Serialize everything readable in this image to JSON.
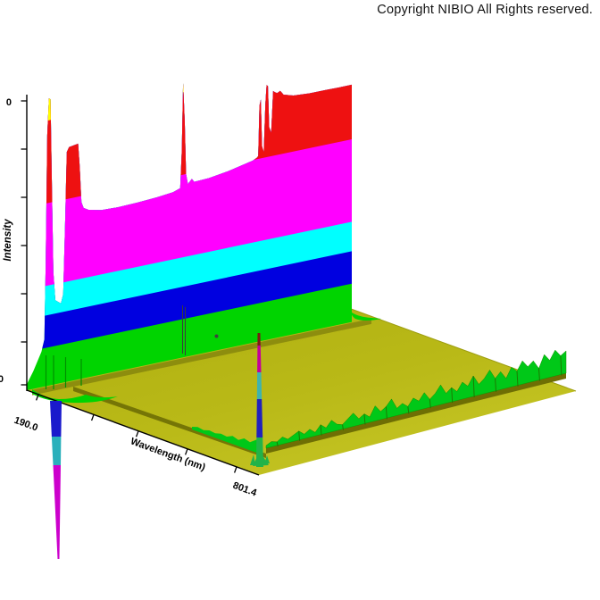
{
  "header": {
    "copyright": "Copyright NIBIO All Rights reserved."
  },
  "chart_data": {
    "type": "surface3d_waterfall",
    "description": "3D photodiode-array chromatogram: intensity surface over wavelength and retention, colored by height contour bands; saturated wall at low wavelength, noisy ridge at long-wavelength edge, negative solvent dip below baseline",
    "axes": {
      "wavelength": {
        "label": "Wavelength (nm)",
        "min": 190.0,
        "max": 801.4,
        "min_tick_label": "190.0",
        "max_tick_label": "801.4"
      },
      "intensity": {
        "label": "Intensity",
        "top_tick_label": "0",
        "bottom_tick_label": "0"
      },
      "depth": {
        "label": ""
      }
    },
    "palette": {
      "yellow": "#ffff00",
      "red": "#ee1111",
      "magenta": "#ff00ff",
      "cyan": "#00ffff",
      "blue": "#0000e0",
      "green": "#00d400",
      "ridge_green": "#00c818",
      "ridge_green_dark": "#1d7a00",
      "floor": "#b8b816",
      "floor_light": "#c6c626",
      "floor_dark": "#83830c",
      "groove": "#6e6e04",
      "axis": "#000000",
      "dip_blue": "#1a1acc",
      "dip_cyan": "#2ab0bb",
      "dip_magenta": "#cc00cc",
      "spike_green": "#22b349",
      "spike_teal": "#3fb3ae",
      "spike_blue": "#2222bb",
      "spike_magenta": "#c4009a",
      "spike_darkred": "#7a1e14"
    },
    "contour_thresholds": [
      [
        "green",
        0
      ],
      [
        "blue",
        0.13
      ],
      [
        "cyan",
        0.24
      ],
      [
        "magenta",
        0.34
      ],
      [
        "red",
        0.62
      ],
      [
        "yellow",
        0.9
      ]
    ],
    "wall_profile": [
      [
        0,
        0.02
      ],
      [
        0.02,
        0.06
      ],
      [
        0.045,
        0.12
      ],
      [
        0.054,
        0.16
      ],
      [
        0.058,
        0.4
      ],
      [
        0.063,
        0.85
      ],
      [
        0.068,
        0.975
      ],
      [
        0.073,
        0.97
      ],
      [
        0.077,
        0.7
      ],
      [
        0.082,
        0.38
      ],
      [
        0.088,
        0.285
      ],
      [
        0.105,
        0.27
      ],
      [
        0.112,
        0.3
      ],
      [
        0.118,
        0.55
      ],
      [
        0.123,
        0.78
      ],
      [
        0.13,
        0.795
      ],
      [
        0.158,
        0.8
      ],
      [
        0.163,
        0.72
      ],
      [
        0.168,
        0.6
      ],
      [
        0.175,
        0.578
      ],
      [
        0.19,
        0.568
      ],
      [
        0.23,
        0.558
      ],
      [
        0.28,
        0.556
      ],
      [
        0.34,
        0.558
      ],
      [
        0.4,
        0.562
      ],
      [
        0.45,
        0.568
      ],
      [
        0.472,
        0.576
      ],
      [
        0.477,
        0.7
      ],
      [
        0.481,
        0.93
      ],
      [
        0.486,
        0.8
      ],
      [
        0.49,
        0.62
      ],
      [
        0.496,
        0.585
      ],
      [
        0.508,
        0.6
      ],
      [
        0.515,
        0.588
      ],
      [
        0.56,
        0.59
      ],
      [
        0.62,
        0.6
      ],
      [
        0.695,
        0.618
      ],
      [
        0.708,
        0.625
      ],
      [
        0.712,
        0.63
      ],
      [
        0.716,
        0.8
      ],
      [
        0.72,
        0.82
      ],
      [
        0.724,
        0.66
      ],
      [
        0.729,
        0.64
      ],
      [
        0.734,
        0.8
      ],
      [
        0.738,
        0.865
      ],
      [
        0.742,
        0.86
      ],
      [
        0.746,
        0.72
      ],
      [
        0.752,
        0.7
      ],
      [
        0.758,
        0.84
      ],
      [
        0.763,
        0.835
      ],
      [
        0.77,
        0.83
      ],
      [
        0.78,
        0.835
      ],
      [
        0.79,
        0.82
      ],
      [
        0.82,
        0.81
      ],
      [
        0.87,
        0.806
      ],
      [
        0.92,
        0.806
      ],
      [
        0.96,
        0.805
      ],
      [
        1,
        0.805
      ]
    ],
    "right_ridge_heights": [
      2,
      5,
      3,
      7,
      3,
      6,
      9,
      4,
      8,
      3,
      10,
      5,
      12,
      6,
      4,
      9,
      14,
      6,
      10,
      5,
      16,
      8,
      12,
      19,
      7,
      11,
      6,
      14,
      9,
      17,
      8,
      13,
      21,
      10,
      15,
      9,
      18,
      12,
      22,
      11,
      16,
      24,
      13,
      19,
      10,
      21,
      15,
      25,
      17,
      22,
      12,
      26,
      18,
      28,
      20,
      24
    ],
    "front_noise_heights": [
      2,
      4,
      3,
      5,
      4,
      6,
      5,
      8,
      6,
      10,
      8,
      13,
      17
    ],
    "negative_dip_segments": [
      [
        "dip_blue",
        449,
        489
      ],
      [
        "dip_cyan",
        489,
        521
      ],
      [
        "dip_magenta",
        521,
        626
      ]
    ],
    "corner_spike_segments": [
      [
        "spike_green",
        523,
        490
      ],
      [
        "spike_blue",
        490,
        447
      ],
      [
        "spike_teal",
        447,
        417
      ],
      [
        "spike_magenta",
        417,
        387
      ],
      [
        "spike_darkred",
        387,
        373
      ]
    ]
  }
}
